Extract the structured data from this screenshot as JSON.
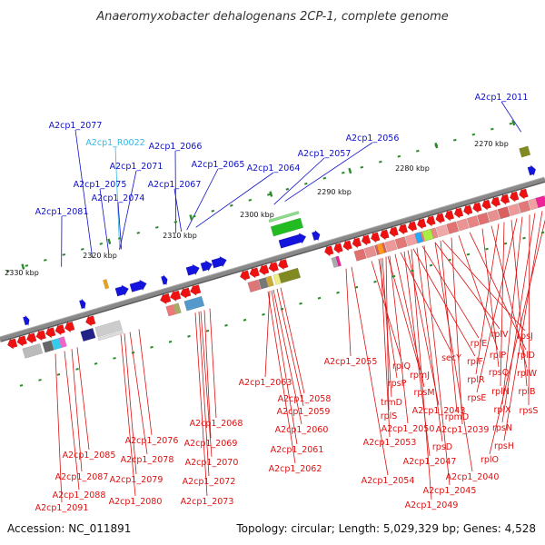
{
  "title": "Anaeromyxobacter dehalogenans 2CP-1, complete genome",
  "footer": {
    "accession": "Accession: NC_011891",
    "summary": "Topology: circular; Length: 5,029,329 bp; Genes: 4,528"
  },
  "colors": {
    "forward_gene": "#1414dc",
    "reverse_gene": "#ee1111",
    "rna_gene": "#e8a020",
    "top_label": "#1010c8",
    "rna_label": "#33b8e0",
    "bottom_label": "#dd1111",
    "axis": "#888888",
    "tick": "#2a8a2a"
  },
  "kbp_labels": [
    "2270 kbp",
    "2280 kbp",
    "2290 kbp",
    "2300 kbp",
    "2310 kbp",
    "2320 kbp",
    "2330 kbp"
  ],
  "top_labels": [
    "A2cp1_2011",
    "A2cp1_2056",
    "A2cp1_2057",
    "A2cp1_2064",
    "A2cp1_2065",
    "A2cp1_2066",
    "A2cp1_R0022",
    "A2cp1_2077",
    "A2cp1_2071",
    "A2cp1_2067",
    "A2cp1_2075",
    "A2cp1_2074",
    "A2cp1_2081"
  ],
  "bottom_labels": [
    "A2cp1_2055",
    "rplQ",
    "rpmJ",
    "secY",
    "rplF",
    "rplE",
    "rplV",
    "rpsJ",
    "rpsP",
    "rpsM",
    "rplP",
    "rplD",
    "trmD",
    "rpsQ",
    "rplW",
    "rplS",
    "rplR",
    "rplN",
    "rplB",
    "A2cp1_2043",
    "rpsE",
    "rplX",
    "rpsS",
    "rpmD",
    "A2cp1_2050",
    "A2cp1_2039",
    "rpsN",
    "A2cp1_2053",
    "rpsD",
    "rpsH",
    "A2cp1_2047",
    "rplO",
    "A2cp1_2040",
    "A2cp1_2054",
    "A2cp1_2045",
    "A2cp1_2049",
    "A2cp1_2063",
    "A2cp1_2058",
    "A2cp1_2059",
    "A2cp1_2060",
    "A2cp1_2061",
    "A2cp1_2062",
    "A2cp1_2068",
    "A2cp1_2069",
    "A2cp1_2070",
    "A2cp1_2072",
    "A2cp1_2073",
    "A2cp1_2076",
    "A2cp1_2078",
    "A2cp1_2079",
    "A2cp1_2080",
    "A2cp1_2085",
    "A2cp1_2087",
    "A2cp1_2088",
    "A2cp1_2091"
  ]
}
